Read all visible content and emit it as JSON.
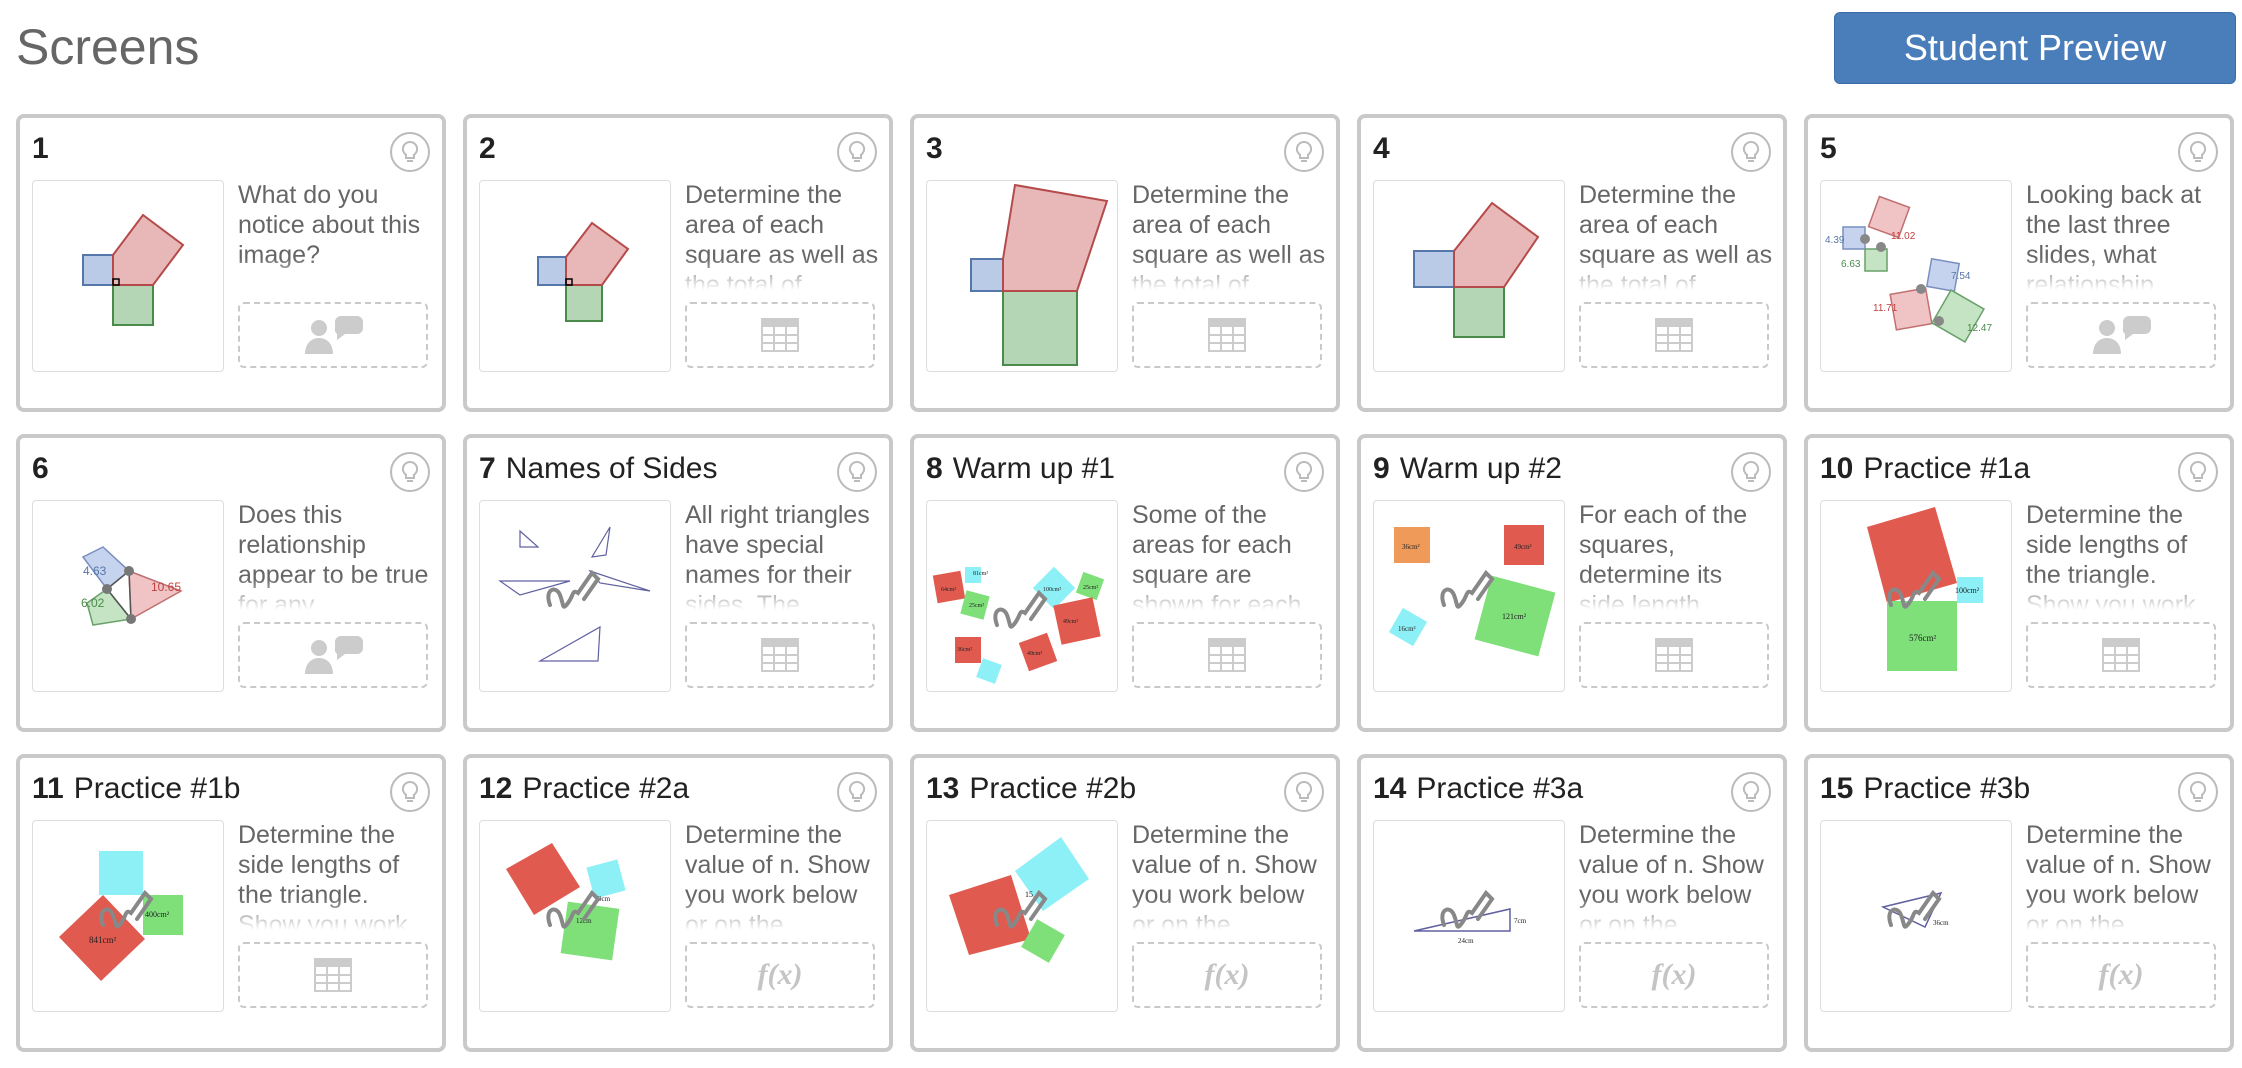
{
  "header": {
    "title": "Screens",
    "preview_button": "Student Preview"
  },
  "screens": [
    {
      "number": "1",
      "title": "",
      "description": "What do you notice about this image?",
      "component": "chat-icon"
    },
    {
      "number": "2",
      "title": "",
      "description": "Determine the area of each square as well as the total of",
      "component": "table-icon"
    },
    {
      "number": "3",
      "title": "",
      "description": "Determine the area of each square as well as the total of",
      "component": "table-icon"
    },
    {
      "number": "4",
      "title": "",
      "description": "Determine the area of each square as well as the total of",
      "component": "table-icon"
    },
    {
      "number": "5",
      "title": "",
      "description": "Looking back at the last three slides, what relationship",
      "component": "chat-icon"
    },
    {
      "number": "6",
      "title": "",
      "description": "Does this relationship appear to be true for any",
      "component": "chat-icon"
    },
    {
      "number": "7",
      "title": "Names of Sides",
      "description": "All right triangles have special names for their sides. The",
      "component": "table-icon"
    },
    {
      "number": "8",
      "title": "Warm up #1",
      "description": "Some of the areas for each square are shown for each",
      "component": "table-icon"
    },
    {
      "number": "9",
      "title": "Warm up #2",
      "description": "For each of the squares, determine its side length",
      "component": "table-icon"
    },
    {
      "number": "10",
      "title": "Practice #1a",
      "description": "Determine the side lengths of the triangle. Show you work",
      "component": "table-icon"
    },
    {
      "number": "11",
      "title": "Practice #1b",
      "description": "Determine the side lengths of the triangle. Show you work",
      "component": "table-icon"
    },
    {
      "number": "12",
      "title": "Practice #2a",
      "description": "Determine the value of n. Show you work below or on the",
      "component": "fx"
    },
    {
      "number": "13",
      "title": "Practice #2b",
      "description": "Determine the value of n. Show you work below or on the",
      "component": "fx"
    },
    {
      "number": "14",
      "title": "Practice #3a",
      "description": "Determine the value of n. Show you work below or on the",
      "component": "fx"
    },
    {
      "number": "15",
      "title": "Practice #3b",
      "description": "Determine the value of n. Show you work below or on the",
      "component": "fx"
    }
  ],
  "thumbs": {
    "t5": [
      "4.39",
      "11.02",
      "6.63",
      "7.54",
      "11.71",
      "12.47"
    ],
    "t6": [
      "4.63",
      "10.65",
      "6.02"
    ],
    "t8": [
      "81cm²",
      "25cm²",
      "100cm²",
      "36cm²",
      "25cm²",
      "49cm²",
      "49cm²",
      "64cm²"
    ],
    "t9": [
      "36cm²",
      "49cm²",
      "16cm²",
      "121cm²"
    ],
    "t10": [
      "100cm²",
      "576cm²"
    ],
    "t11": [
      "400cm²",
      "841cm²"
    ],
    "t12": [
      "9cm",
      "12cm"
    ],
    "t13": [
      "15"
    ],
    "t14": [
      "7cm",
      "24cm"
    ],
    "t15": [
      "36cm"
    ]
  },
  "fx_label": "f(x)",
  "colors": {
    "accent": "#4a7ebb",
    "red": "#e05a4f",
    "green": "#7fe07a",
    "cyan": "#8ef0f7",
    "blue": "#8fa9d8",
    "pink": "#e0a0a0"
  }
}
